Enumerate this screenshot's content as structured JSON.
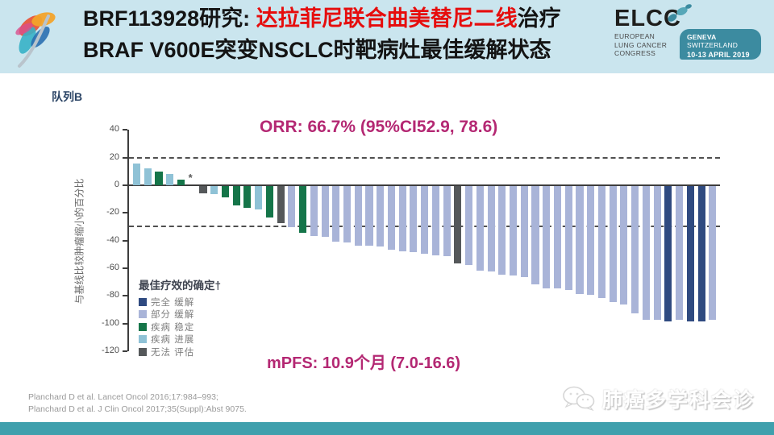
{
  "header": {
    "title_line1_prefix": "BRF113928研究: ",
    "title_line1_highlight": "达拉菲尼联合曲美替尼二线",
    "title_line1_suffix": "治疗",
    "title_line2": "BRAF V600E突变NSCLC时靶病灶最佳缓解状态",
    "highlight_color": "#e60d0d",
    "band_color": "#cae5ee",
    "elcc": {
      "wordmark": "ELCC",
      "org_lines": [
        "EUROPEAN",
        "LUNG CANCER",
        "CONGRESS"
      ],
      "badge_city": "GENEVA",
      "badge_country": " SWITZERLAND",
      "badge_date": "10-13 APRIL 2019",
      "badge_color": "#3c8ba0"
    }
  },
  "chart_data": {
    "type": "bar",
    "subtype": "waterfall",
    "title": "队列B",
    "orr_annotation": "ORR: 66.7% (95%CI52.9, 78.6)",
    "mpfs_annotation": "mPFS: 10.9个月 (7.0-16.6)",
    "ylabel": "与基线比较肿瘤缩小的百分比",
    "ylim": [
      -120,
      40
    ],
    "yticks": [
      40,
      20,
      0,
      -20,
      -40,
      -60,
      -80,
      -100,
      -120
    ],
    "reference_lines": [
      20,
      -30
    ],
    "grid": false,
    "legend_position": "lower-left-inside",
    "legend": {
      "title": "最佳疗效的确定†",
      "entries": [
        {
          "key": "CR",
          "label": "完全 缓解",
          "color": "#2f4a80"
        },
        {
          "key": "PR",
          "label": "部分 缓解",
          "color": "#a9b4d8"
        },
        {
          "key": "SD",
          "label": "疾病 稳定",
          "color": "#157549"
        },
        {
          "key": "PD",
          "label": "疾病 进展",
          "color": "#8fc2d6"
        },
        {
          "key": "NE",
          "label": "无法 评估",
          "color": "#55585a"
        }
      ]
    },
    "bars": [
      {
        "v": 16,
        "c": "PD"
      },
      {
        "v": 12,
        "c": "PD"
      },
      {
        "v": 10,
        "c": "SD"
      },
      {
        "v": 8,
        "c": "PD"
      },
      {
        "v": 4,
        "c": "SD"
      },
      {
        "v": 0,
        "c": "NE",
        "mark": "*"
      },
      {
        "v": -5,
        "c": "NE"
      },
      {
        "v": -6,
        "c": "PD"
      },
      {
        "v": -8,
        "c": "SD"
      },
      {
        "v": -14,
        "c": "SD"
      },
      {
        "v": -16,
        "c": "SD"
      },
      {
        "v": -17,
        "c": "PD"
      },
      {
        "v": -23,
        "c": "SD"
      },
      {
        "v": -27,
        "c": "NE"
      },
      {
        "v": -30,
        "c": "PR"
      },
      {
        "v": -34,
        "c": "SD"
      },
      {
        "v": -36,
        "c": "PR"
      },
      {
        "v": -37,
        "c": "PR"
      },
      {
        "v": -40,
        "c": "PR"
      },
      {
        "v": -41,
        "c": "PR"
      },
      {
        "v": -43,
        "c": "PR"
      },
      {
        "v": -43,
        "c": "PR"
      },
      {
        "v": -44,
        "c": "PR"
      },
      {
        "v": -46,
        "c": "PR"
      },
      {
        "v": -47,
        "c": "PR"
      },
      {
        "v": -48,
        "c": "PR"
      },
      {
        "v": -49,
        "c": "PR"
      },
      {
        "v": -50,
        "c": "PR"
      },
      {
        "v": -51,
        "c": "PR"
      },
      {
        "v": -56,
        "c": "NE"
      },
      {
        "v": -57,
        "c": "PR"
      },
      {
        "v": -61,
        "c": "PR"
      },
      {
        "v": -62,
        "c": "PR"
      },
      {
        "v": -64,
        "c": "PR"
      },
      {
        "v": -65,
        "c": "PR"
      },
      {
        "v": -66,
        "c": "PR"
      },
      {
        "v": -71,
        "c": "PR"
      },
      {
        "v": -74,
        "c": "PR"
      },
      {
        "v": -74,
        "c": "PR"
      },
      {
        "v": -75,
        "c": "PR"
      },
      {
        "v": -78,
        "c": "PR"
      },
      {
        "v": -79,
        "c": "PR"
      },
      {
        "v": -81,
        "c": "PR"
      },
      {
        "v": -84,
        "c": "PR"
      },
      {
        "v": -86,
        "c": "PR"
      },
      {
        "v": -92,
        "c": "PR"
      },
      {
        "v": -97,
        "c": "PR"
      },
      {
        "v": -97,
        "c": "PR"
      },
      {
        "v": -98,
        "c": "CR"
      },
      {
        "v": -97,
        "c": "PR"
      },
      {
        "v": -98,
        "c": "CR"
      },
      {
        "v": -98,
        "c": "CR"
      },
      {
        "v": -97,
        "c": "PR"
      }
    ]
  },
  "footer": {
    "lines": [
      "Planchard D et al. Lancet Oncol 2016;17:984–993;",
      "Planchard D et al. J Clin Oncol 2017;35(Suppl):Abst 9075."
    ],
    "watermark": "肺癌多学科会诊",
    "strip_color": "#3fa0ad"
  }
}
